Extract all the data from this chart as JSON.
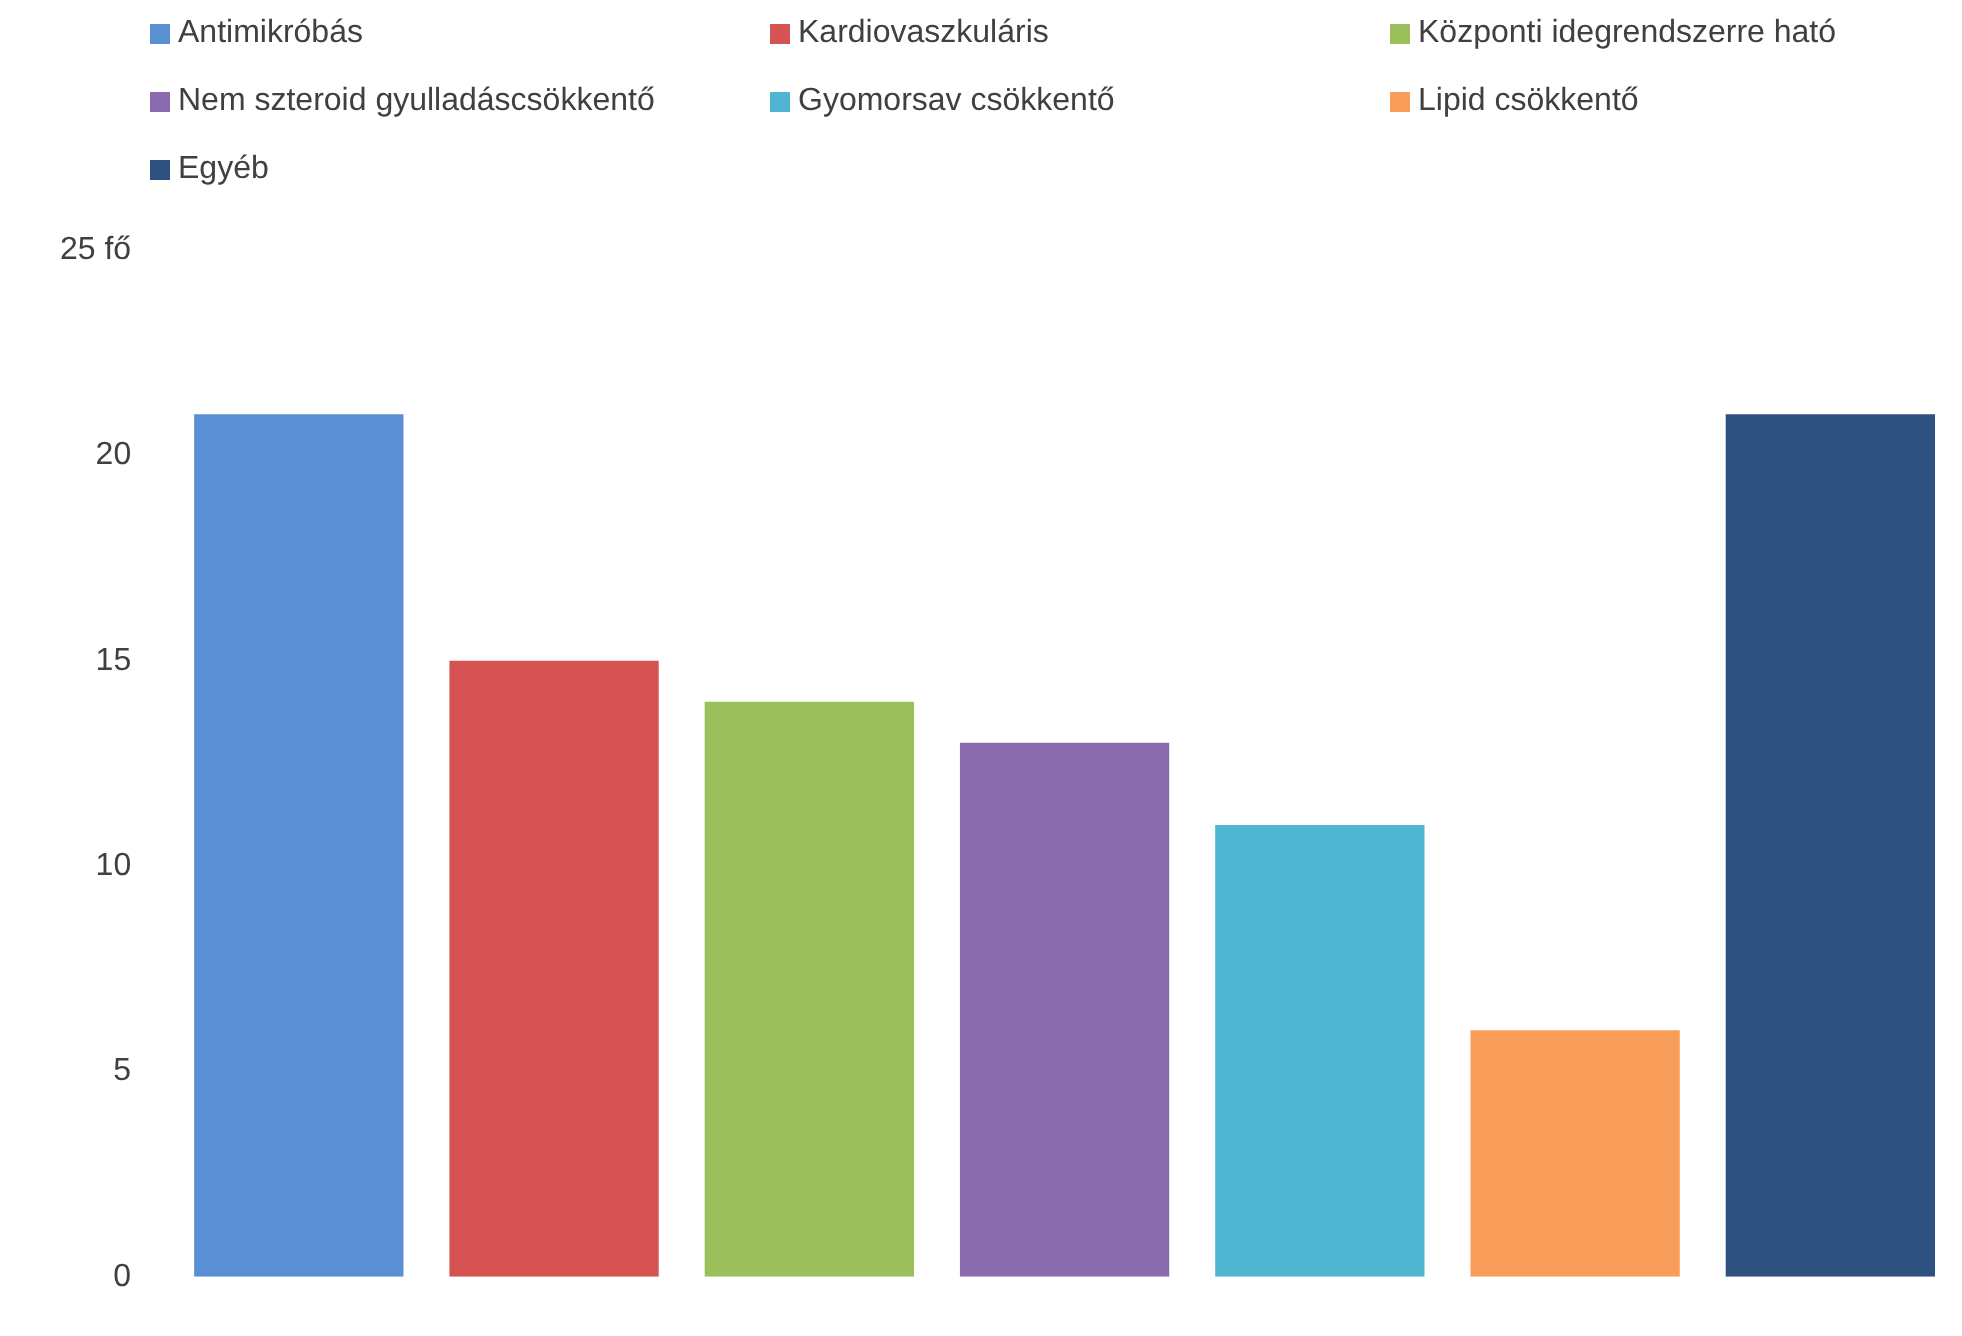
{
  "chart_data": {
    "type": "bar",
    "stacked": true,
    "categories": [
      null,
      null,
      null,
      null,
      null,
      null,
      null
    ],
    "series": [
      {
        "name": "Antimikróbás",
        "color": "#5b8fd3",
        "values": [
          21,
          null,
          null,
          null,
          null,
          null,
          null
        ]
      },
      {
        "name": "Kardiovaszkuláris",
        "color": "#d55353",
        "values": [
          null,
          15,
          null,
          null,
          null,
          null,
          null
        ]
      },
      {
        "name": "Központi idegrendszerre ható",
        "color": "#9bbf5a",
        "values": [
          null,
          null,
          14,
          null,
          null,
          null,
          null
        ]
      },
      {
        "name": "Nem szteroid gyulladáscsökkentő",
        "color": "#8a6bae",
        "values": [
          null,
          null,
          null,
          13,
          null,
          null,
          null
        ]
      },
      {
        "name": "Gyomorsav csökkentő",
        "color": "#4fb5d0",
        "values": [
          null,
          null,
          null,
          null,
          11,
          null,
          null
        ]
      },
      {
        "name": "Lipid csökkentő",
        "color": "#f99e5a",
        "values": [
          null,
          null,
          null,
          null,
          null,
          6,
          null
        ]
      },
      {
        "name": "Egyéb",
        "color": "#2f5180",
        "values": [
          null,
          null,
          null,
          null,
          null,
          null,
          21
        ]
      }
    ],
    "ylim": [
      0,
      25
    ],
    "yticks": [
      0,
      5,
      10,
      15,
      20,
      {
        "value": 25,
        "label": "25 fő"
      }
    ],
    "grid": false,
    "legend": "top left"
  }
}
